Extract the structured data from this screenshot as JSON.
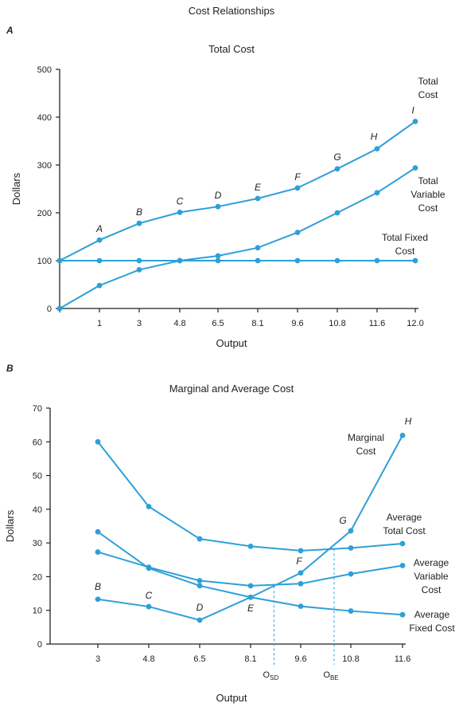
{
  "title": "Cost Relationships",
  "series_color": "#2f9fd8",
  "chart_data": [
    {
      "panel": "A",
      "type": "line",
      "title": "Total Cost",
      "xlabel": "Output",
      "ylabel": "Dollars",
      "x": [
        0,
        1,
        3,
        4.8,
        6.5,
        8.1,
        9.6,
        10.8,
        11.6,
        12.0
      ],
      "x_tick_labels": [
        "",
        "1",
        "3",
        "4.8",
        "6.5",
        "8.1",
        "9.6",
        "10.8",
        "11.6",
        "12.0"
      ],
      "ylim": [
        0,
        500
      ],
      "y_ticks": [
        0,
        100,
        200,
        300,
        400,
        500
      ],
      "grid": false,
      "series": [
        {
          "name": "Total Cost",
          "values": [
            100,
            143,
            178,
            201,
            213,
            230,
            252,
            292,
            334,
            391
          ]
        },
        {
          "name": "Total Variable Cost",
          "values": [
            0,
            48,
            81,
            100,
            110,
            127,
            159,
            200,
            242,
            294
          ]
        },
        {
          "name": "Total Fixed Cost",
          "values": [
            100,
            100,
            100,
            100,
            100,
            100,
            100,
            100,
            100,
            100
          ]
        }
      ],
      "legend_labels": [
        {
          "series": 0,
          "lines": [
            "Total",
            "Cost"
          ]
        },
        {
          "series": 1,
          "lines": [
            "Total",
            "Variable",
            "Cost"
          ]
        },
        {
          "series": 2,
          "lines": [
            "Total Fixed",
            "Cost"
          ]
        }
      ],
      "point_labels": {
        "series": 0,
        "labels": [
          "",
          "A",
          "B",
          "C",
          "D",
          "E",
          "F",
          "G",
          "H",
          "I"
        ]
      }
    },
    {
      "panel": "B",
      "type": "line",
      "title": "Marginal and Average Cost",
      "xlabel": "Output",
      "ylabel": "Dollars",
      "x": [
        3,
        4.8,
        6.5,
        8.1,
        9.6,
        10.8,
        11.6
      ],
      "x_tick_labels": [
        "3",
        "4.8",
        "6.5",
        "8.1",
        "9.6",
        "10.8",
        "11.6"
      ],
      "ylim": [
        0,
        70
      ],
      "y_ticks": [
        0,
        10,
        20,
        30,
        40,
        50,
        60,
        70
      ],
      "grid": false,
      "series": [
        {
          "name": "Marginal Cost",
          "values": [
            13.3,
            11.1,
            7.1,
            13.9,
            21.1,
            33.6,
            61.9
          ]
        },
        {
          "name": "Average Total Cost",
          "values": [
            60.0,
            40.8,
            31.2,
            29.0,
            27.7,
            28.5,
            29.8
          ]
        },
        {
          "name": "Average Variable Cost",
          "values": [
            27.3,
            22.8,
            18.8,
            17.3,
            17.9,
            20.8,
            23.3
          ]
        },
        {
          "name": "Average Fixed Cost",
          "values": [
            33.3,
            22.5,
            17.3,
            13.9,
            11.2,
            9.8,
            8.7
          ]
        }
      ],
      "legend_labels": [
        {
          "series": 0,
          "lines": [
            "Marginal",
            "Cost"
          ]
        },
        {
          "series": 1,
          "lines": [
            "Average",
            "Total Cost"
          ]
        },
        {
          "series": 2,
          "lines": [
            "Average",
            "Variable",
            "Cost"
          ]
        },
        {
          "series": 3,
          "lines": [
            "Average",
            "Fixed Cost"
          ]
        }
      ],
      "point_labels": {
        "series": 0,
        "labels": [
          "B",
          "C",
          "D",
          "E",
          "F",
          "G",
          "H"
        ]
      },
      "markers": [
        {
          "x": 8.8,
          "label": "O",
          "sub": "SD",
          "y_top": 17.2
        },
        {
          "x": 10.4,
          "label": "O",
          "sub": "BE",
          "y_top": 28.3
        }
      ]
    }
  ]
}
